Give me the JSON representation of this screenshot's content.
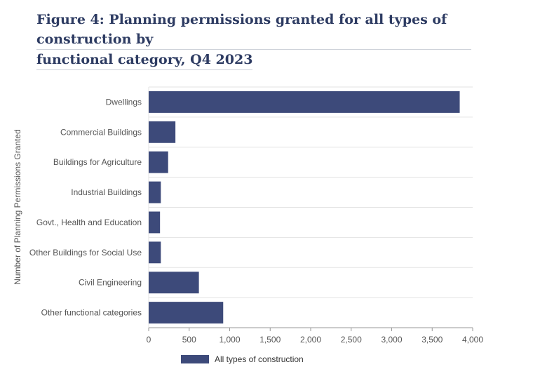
{
  "title": {
    "line1": "Figure 4: Planning permissions granted for all types of construction by",
    "line2": "functional category, Q4 2023"
  },
  "colors": {
    "bar": "#3d4a7a",
    "grid": "#e3e3e3",
    "axis": "#999999"
  },
  "chart_data": {
    "type": "bar",
    "orientation": "horizontal",
    "title": "Figure 4: Planning permissions granted for all types of construction by functional category, Q4 2023",
    "xlabel": "",
    "ylabel": "Number of Planning Permissions Granted",
    "categories": [
      "Dwellings",
      "Commercial Buildings",
      "Buildings for Agriculture",
      "Industrial Buildings",
      "Govt., Health and Education",
      "Other Buildings for Social Use",
      "Civil Engineering",
      "Other functional categories"
    ],
    "series": [
      {
        "name": "All types of construction",
        "values": [
          3840,
          330,
          240,
          150,
          140,
          150,
          620,
          920
        ]
      }
    ],
    "xlim": [
      0,
      4000
    ],
    "xticks": [
      0,
      500,
      1000,
      1500,
      2000,
      2500,
      3000,
      3500,
      4000
    ],
    "xtick_labels": [
      "0",
      "500",
      "1,000",
      "1,500",
      "2,000",
      "2,500",
      "3,000",
      "3,500",
      "4,000"
    ],
    "grid": true,
    "legend_position": "bottom"
  }
}
